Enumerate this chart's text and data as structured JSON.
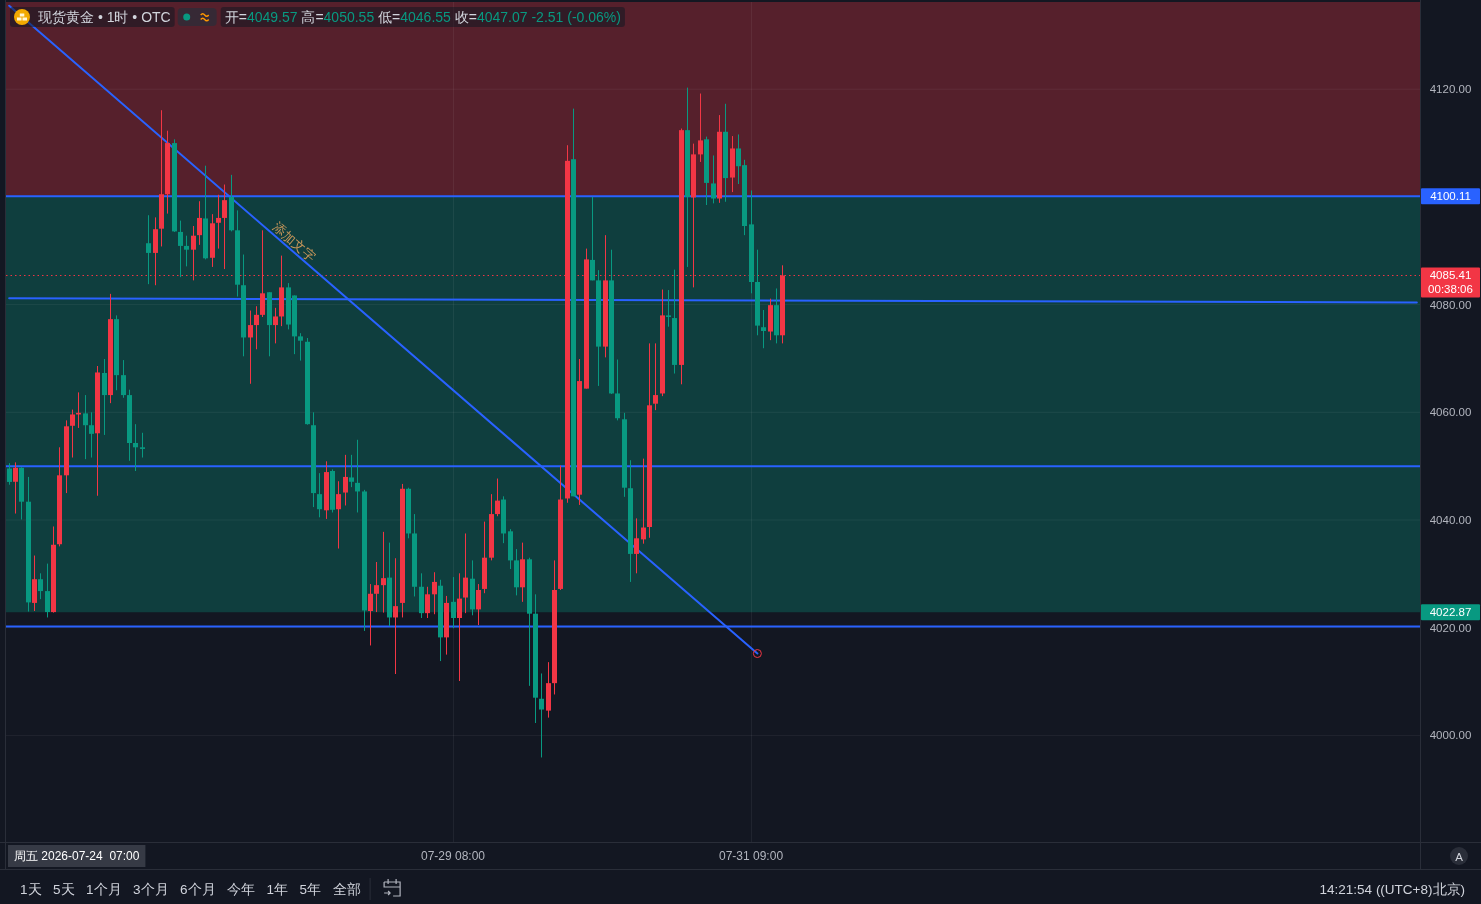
{
  "chart_data": {
    "type": "candlestick",
    "title": "现货黄金 • 1时 • OTC",
    "subtitle": "开=4049.57 高=4050.55 低=4046.55 收=4047.07 -2.51 (-0.06%)",
    "categories": [
      null,
      null,
      null,
      null,
      null,
      null,
      null,
      null,
      null,
      null,
      null,
      null,
      null,
      null,
      null,
      null,
      null,
      null,
      null,
      null,
      null,
      null,
      null,
      null,
      null,
      null,
      null,
      null,
      null,
      null,
      null,
      null,
      null,
      null,
      null,
      null,
      null,
      null,
      null,
      null,
      null,
      null,
      null,
      null,
      null,
      null,
      null,
      null,
      null,
      null,
      null,
      null,
      null,
      null,
      null,
      null,
      null,
      null,
      null,
      null,
      null,
      null,
      null,
      null,
      null,
      null,
      null,
      null,
      null,
      null,
      "07-29 08:00",
      null,
      null,
      null,
      null,
      null,
      null,
      null,
      null,
      null,
      null,
      null,
      null,
      null,
      null,
      null,
      null,
      null,
      null,
      null,
      null,
      null,
      null,
      null,
      null,
      null,
      null,
      null,
      null,
      null,
      null,
      null,
      null,
      null,
      null,
      null,
      null,
      null,
      null,
      null,
      null,
      null,
      null,
      null,
      null,
      null,
      null,
      "07-31 09:00",
      null,
      null,
      null,
      null,
      null,
      null,
      null,
      null,
      null,
      null,
      null,
      null,
      null,
      null,
      null,
      null,
      null,
      null,
      null,
      null,
      null,
      null,
      null,
      null,
      null,
      null,
      null,
      null,
      null,
      null,
      null,
      null,
      null,
      null,
      null,
      null,
      null,
      null,
      null,
      null,
      null,
      null,
      null,
      null,
      null,
      null,
      null,
      null,
      null,
      null,
      null,
      null,
      null,
      null,
      null,
      null,
      null,
      null,
      null,
      null,
      null,
      null,
      null,
      null,
      null,
      null,
      null,
      null,
      null,
      null,
      null,
      null,
      null,
      null,
      null,
      null,
      null,
      null,
      null,
      null,
      null,
      null,
      null,
      null,
      null,
      null,
      null,
      null,
      null,
      null,
      null,
      null,
      null,
      null,
      null,
      null,
      null,
      null,
      null,
      null,
      null,
      null,
      null,
      null,
      null
    ],
    "ohlc": [
      [
        4049.57,
        4050.55,
        4046.55,
        4047.07
      ],
      [
        4047.1,
        4050.7,
        4041.2,
        4049.7
      ],
      [
        4049.7,
        4049.8,
        4040.1,
        4043.4
      ],
      [
        4043.4,
        4048.0,
        4023.0,
        4024.7
      ],
      [
        4024.6,
        4033.4,
        4023.1,
        4029.0
      ],
      [
        4029.0,
        4030.1,
        4025.3,
        4026.8
      ],
      [
        4026.8,
        4031.9,
        4021.9,
        4022.9
      ],
      [
        4022.9,
        4038.8,
        4022.8,
        4035.4
      ],
      [
        4035.5,
        4053.5,
        4035.1,
        4048.3
      ],
      [
        4048.3,
        4058.5,
        4045.0,
        4057.4
      ],
      [
        4057.5,
        4060.5,
        4051.6,
        4059.6
      ],
      [
        4059.6,
        4063.7,
        4057.1,
        4059.9
      ],
      [
        4059.8,
        4063.2,
        4051.3,
        4057.6
      ],
      [
        4057.6,
        4060.0,
        4051.6,
        4056.0
      ],
      [
        4056.1,
        4068.6,
        4044.5,
        4067.4
      ],
      [
        4067.3,
        4069.9,
        4055.8,
        4063.2
      ],
      [
        4063.2,
        4082.0,
        4061.7,
        4077.3
      ],
      [
        4077.3,
        4078.0,
        4064.1,
        4066.9
      ],
      [
        4066.9,
        4069.7,
        4062.7,
        4063.2
      ],
      [
        4063.2,
        4064.2,
        4051.0,
        4054.3
      ],
      [
        4054.3,
        4057.8,
        4049.1,
        4053.5
      ],
      [
        4053.5,
        4056.2,
        4051.6,
        4053.2
      ],
      [
        4091.4,
        4096.6,
        4083.8,
        4089.6
      ],
      [
        4089.6,
        4096.2,
        4083.6,
        4094.0
      ],
      [
        4094.1,
        4116.1,
        4090.8,
        4100.5
      ],
      [
        4100.5,
        4112.3,
        4096.9,
        4110.0
      ],
      [
        4110.0,
        4110.7,
        4093.5,
        4093.6
      ],
      [
        4093.5,
        4095.6,
        4085.1,
        4090.9
      ],
      [
        4090.9,
        4092.8,
        4087.1,
        4090.2
      ],
      [
        4090.2,
        4094.6,
        4084.5,
        4092.8
      ],
      [
        4092.9,
        4099.2,
        4091.1,
        4096.1
      ],
      [
        4096.0,
        4105.8,
        4088.4,
        4088.6
      ],
      [
        4088.7,
        4096.8,
        4087.0,
        4095.1
      ],
      [
        4095.2,
        4100.4,
        4090.4,
        4096.1
      ],
      [
        4096.1,
        4102.3,
        4086.6,
        4099.4
      ],
      [
        4100.0,
        4104.1,
        4093.6,
        4093.8
      ],
      [
        4093.8,
        4097.5,
        4081.5,
        4083.7
      ],
      [
        4083.6,
        4089.3,
        4070.4,
        4073.9
      ],
      [
        4073.9,
        4078.9,
        4065.3,
        4076.2
      ],
      [
        4076.2,
        4079.7,
        4071.7,
        4078.1
      ],
      [
        4078.1,
        4093.8,
        4077.7,
        4082.1
      ],
      [
        4082.3,
        4082.3,
        4070.4,
        4076.2
      ],
      [
        4076.2,
        4079.4,
        4072.8,
        4077.8
      ],
      [
        4077.8,
        4089.1,
        4076.0,
        4083.2
      ],
      [
        4083.2,
        4084.0,
        4075.4,
        4076.3
      ],
      [
        4081.7,
        4081.7,
        4070.8,
        4074.1
      ],
      [
        4074.1,
        4074.7,
        4069.6,
        4073.3
      ],
      [
        4073.1,
        4073.8,
        4057.7,
        4057.8
      ],
      [
        4057.6,
        4060.0,
        4042.4,
        4045.0
      ],
      [
        4044.8,
        4048.7,
        4040.5,
        4042.0
      ],
      [
        4041.8,
        4050.9,
        4040.2,
        4048.9
      ],
      [
        4049.1,
        4049.4,
        4041.4,
        4041.9
      ],
      [
        4042.0,
        4047.2,
        4034.7,
        4044.8
      ],
      [
        4045.1,
        4052.1,
        4042.7,
        4048.0
      ],
      [
        4047.9,
        4052.1,
        4046.1,
        4047.1
      ],
      [
        4046.9,
        4054.9,
        4041.4,
        4045.3
      ],
      [
        4045.3,
        4045.6,
        4019.4,
        4023.2
      ],
      [
        4023.1,
        4028.1,
        4016.7,
        4026.3
      ],
      [
        4026.3,
        4032.2,
        4022.9,
        4027.9
      ],
      [
        4027.9,
        4037.8,
        4022.8,
        4029.2
      ],
      [
        4029.3,
        4035.8,
        4020.3,
        4021.9
      ],
      [
        4021.9,
        4032.9,
        4011.4,
        4024.0
      ],
      [
        4024.6,
        4046.7,
        4021.9,
        4045.8
      ],
      [
        4045.8,
        4046.0,
        4036.6,
        4037.5
      ],
      [
        4037.5,
        4041.1,
        4025.8,
        4027.6
      ],
      [
        4027.6,
        4030.1,
        4021.8,
        4022.7
      ],
      [
        4022.7,
        4027.6,
        4021.8,
        4026.2
      ],
      [
        4026.2,
        4030.3,
        4022.5,
        4028.5
      ],
      [
        4027.8,
        4028.9,
        4013.8,
        4018.2
      ],
      [
        4018.2,
        4025.9,
        4015.0,
        4024.6
      ],
      [
        4024.8,
        4029.4,
        4019.9,
        4021.8
      ],
      [
        4021.8,
        4030.1,
        4010.1,
        4025.4
      ],
      [
        4025.6,
        4037.5,
        4022.7,
        4029.3
      ],
      [
        4029.1,
        4032.5,
        4022.3,
        4023.4
      ],
      [
        4023.4,
        4028.1,
        4020.5,
        4027.0
      ],
      [
        4027.2,
        4039.7,
        4026.4,
        4033.0
      ],
      [
        4033.0,
        4044.8,
        4032.5,
        4041.1
      ],
      [
        4041.1,
        4047.7,
        4040.7,
        4043.6
      ],
      [
        4043.8,
        4044.4,
        4035.7,
        4037.5
      ],
      [
        4037.9,
        4038.3,
        4030.9,
        4032.5
      ],
      [
        4032.5,
        4034.6,
        4026.0,
        4027.5
      ],
      [
        4027.5,
        4035.8,
        4024.8,
        4032.7
      ],
      [
        4032.7,
        4033.0,
        4009.2,
        4022.6
      ],
      [
        4022.6,
        4026.2,
        4002.3,
        4007.0
      ],
      [
        4006.8,
        4011.5,
        3995.9,
        4004.8
      ],
      [
        4004.6,
        4013.6,
        4003.3,
        4009.7
      ],
      [
        4009.7,
        4032.5,
        4007.6,
        4027.0
      ],
      [
        4027.2,
        4050.1,
        4027.0,
        4043.8
      ],
      [
        4044.0,
        4109.6,
        4043.2,
        4106.7
      ],
      [
        4107.0,
        4116.4,
        4044.4,
        4044.4
      ],
      [
        4044.7,
        4069.9,
        4042.8,
        4065.8
      ],
      [
        4064.4,
        4090.4,
        4064.4,
        4088.4
      ],
      [
        4088.3,
        4100.0,
        4084.5,
        4084.5
      ],
      [
        4084.5,
        4086.4,
        4064.9,
        4072.2
      ],
      [
        4072.2,
        4092.9,
        4070.2,
        4084.5
      ],
      [
        4084.5,
        4090.2,
        4063.4,
        4063.5
      ],
      [
        4063.5,
        4069.8,
        4058.5,
        4058.9
      ],
      [
        4058.7,
        4059.9,
        4044.3,
        4046.0
      ],
      [
        4045.9,
        4051.1,
        4028.5,
        4033.7
      ],
      [
        4033.7,
        4040.3,
        4030.1,
        4036.6
      ],
      [
        4036.4,
        4051.4,
        4035.6,
        4038.6
      ],
      [
        4038.7,
        4072.8,
        4036.7,
        4061.3
      ],
      [
        4061.6,
        4072.8,
        4060.4,
        4063.2
      ],
      [
        4063.5,
        4082.8,
        4063.0,
        4078.0
      ],
      [
        4078.0,
        4082.7,
        4075.9,
        4077.7
      ],
      [
        4077.5,
        4086.5,
        4067.2,
        4068.8
      ],
      [
        4068.8,
        4112.7,
        4065.2,
        4112.4
      ],
      [
        4112.4,
        4120.3,
        4087.0,
        4100.0
      ],
      [
        4099.9,
        4109.9,
        4083.2,
        4107.9
      ],
      [
        4107.9,
        4119.2,
        4106.5,
        4110.5
      ],
      [
        4110.7,
        4111.2,
        4098.5,
        4102.6
      ],
      [
        4102.5,
        4107.7,
        4098.8,
        4099.7
      ],
      [
        4099.7,
        4115.2,
        4098.9,
        4112.1
      ],
      [
        4112.1,
        4117.3,
        4099.1,
        4103.5
      ],
      [
        4103.6,
        4111.3,
        4100.9,
        4109.0
      ],
      [
        4109.0,
        4111.6,
        4102.4,
        4105.7
      ],
      [
        4105.9,
        4106.9,
        4092.9,
        4094.6
      ],
      [
        4094.9,
        4101.2,
        4082.1,
        4084.2
      ],
      [
        4084.2,
        4090.2,
        4074.3,
        4076.1
      ],
      [
        4075.8,
        4079.0,
        4071.9,
        4075.1
      ],
      [
        4075.0,
        4081.1,
        4073.4,
        4079.9
      ],
      [
        4079.9,
        4083.0,
        4072.8,
        4074.3
      ],
      [
        4074.3,
        4087.3,
        4072.8,
        4085.41
      ],
      null,
      null,
      null,
      null,
      null,
      null,
      null,
      null,
      null,
      null,
      null,
      null,
      null,
      null,
      null,
      null,
      null,
      null,
      null,
      null,
      null,
      null,
      null,
      null,
      null,
      null,
      null,
      null,
      null,
      null,
      null,
      null,
      null,
      null,
      null,
      null,
      null,
      null,
      null,
      null,
      null,
      null,
      null,
      null,
      null,
      null,
      null,
      null,
      null,
      null,
      null,
      null,
      null,
      null,
      null,
      null,
      null,
      null,
      null,
      null,
      null,
      null,
      null,
      null,
      null,
      null,
      null,
      null,
      null,
      null,
      null,
      null,
      null,
      null,
      null,
      null,
      null,
      null,
      null,
      null,
      null,
      null,
      null,
      null,
      null,
      null,
      null,
      null,
      null,
      null,
      null,
      null,
      null,
      null,
      null,
      null,
      null,
      null,
      null,
      null
    ],
    "colors": [
      "#089981",
      "#f23645",
      "#089981",
      "#089981",
      "#f23645",
      "#089981",
      "#089981",
      "#f23645",
      "#f23645",
      "#f23645",
      "#f23645",
      "#f23645",
      "#089981",
      "#089981",
      "#f23645",
      "#089981",
      "#f23645",
      "#089981",
      "#089981",
      "#089981",
      "#089981",
      "#089981",
      "#089981",
      "#f23645",
      "#f23645",
      "#f23645",
      "#089981",
      "#089981",
      "#089981",
      "#f23645",
      "#f23645",
      "#089981",
      "#f23645",
      "#f23645",
      "#f23645",
      "#089981",
      "#089981",
      "#089981",
      "#f23645",
      "#f23645",
      "#f23645",
      "#089981",
      "#f23645",
      "#f23645",
      "#089981",
      "#089981",
      "#089981",
      "#089981",
      "#089981",
      "#089981",
      "#f23645",
      "#089981",
      "#f23645",
      "#f23645",
      "#089981",
      "#089981",
      "#089981",
      "#f23645",
      "#f23645",
      "#f23645",
      "#089981",
      "#f23645",
      "#f23645",
      "#089981",
      "#089981",
      "#089981",
      "#f23645",
      "#f23645",
      "#089981",
      "#f23645",
      "#089981",
      "#f23645",
      "#f23645",
      "#089981",
      "#f23645",
      "#f23645",
      "#f23645",
      "#f23645",
      "#089981",
      "#089981",
      "#089981",
      "#f23645",
      "#089981",
      "#089981",
      "#089981",
      "#f23645",
      "#f23645",
      "#f23645",
      "#f23645",
      "#089981",
      "#f23645",
      "#f23645",
      "#089981",
      "#089981",
      "#f23645",
      "#089981",
      "#089981",
      "#089981",
      "#089981",
      "#f23645",
      "#f23645",
      "#f23645",
      "#f23645",
      "#f23645",
      "#089981",
      "#089981",
      "#f23645",
      "#089981",
      "#f23645",
      "#f23645",
      "#089981",
      "#089981",
      "#f23645",
      "#089981",
      "#f23645",
      "#089981",
      "#089981",
      "#089981",
      "#089981",
      "#089981",
      "#f23645",
      "#089981",
      "#f23645",
      null,
      null,
      null,
      null,
      null,
      null,
      null,
      null,
      null,
      null,
      null,
      null,
      null,
      null,
      null,
      null,
      null,
      null,
      null,
      null,
      null,
      null,
      null,
      null,
      null,
      null,
      null,
      null,
      null,
      null,
      null,
      null,
      null,
      null,
      null,
      null,
      null,
      null,
      null,
      null,
      null,
      null,
      null,
      null,
      null,
      null,
      null,
      null,
      null,
      null,
      null,
      null,
      null,
      null,
      null,
      null,
      null,
      null,
      null,
      null,
      null,
      null,
      null,
      null,
      null,
      null,
      null,
      null,
      null,
      null,
      null,
      null,
      null,
      null,
      null,
      null,
      null,
      null,
      null,
      null,
      null,
      null,
      null,
      null,
      null,
      null,
      null,
      null,
      null,
      null,
      null,
      null,
      null,
      null,
      null,
      null,
      null,
      null,
      null,
      null
    ],
    "series": [
      {
        "type": "line",
        "name": "添加文字",
        "color": "#2962ff",
        "values": [
          4135.5,
          null,
          null,
          null,
          null,
          null,
          null,
          null,
          null,
          null,
          null,
          null,
          null,
          null,
          null,
          null,
          null,
          null,
          null,
          null,
          null,
          null,
          null,
          null,
          null,
          null,
          null,
          null,
          null,
          null,
          null,
          null,
          null,
          null,
          null,
          null,
          null,
          null,
          null,
          null,
          null,
          null,
          null,
          null,
          null,
          null,
          null,
          null,
          null,
          null,
          null,
          null,
          null,
          null,
          null,
          null,
          null,
          null,
          null,
          null,
          null,
          null,
          null,
          null,
          null,
          null,
          null,
          null,
          null,
          null,
          null,
          null,
          null,
          null,
          null,
          null,
          null,
          null,
          null,
          null,
          null,
          null,
          null,
          null,
          null,
          null,
          null,
          null,
          null,
          null,
          null,
          null,
          null,
          null,
          null,
          null,
          null,
          null,
          null,
          null,
          null,
          null,
          null,
          null,
          null,
          null,
          null,
          null,
          null,
          null,
          null,
          null,
          null,
          null,
          null,
          null,
          null,
          null,
          4015.2,
          null,
          null,
          null,
          null,
          null,
          null,
          null,
          null,
          null,
          null,
          null,
          null,
          null,
          null,
          null,
          null,
          null,
          null,
          null,
          null,
          null,
          null,
          null,
          null,
          null,
          null,
          null,
          null,
          null,
          null,
          null,
          null,
          null,
          null,
          null,
          null,
          null,
          null,
          null,
          null,
          null,
          null,
          null,
          null,
          null,
          null,
          null,
          null,
          null,
          null,
          null,
          null,
          null,
          null,
          null,
          null,
          null,
          null,
          null,
          null,
          null,
          null,
          null,
          null,
          null,
          null,
          null,
          null,
          null,
          null,
          null,
          null,
          null,
          null,
          null,
          null,
          null,
          null,
          null,
          null,
          null,
          null,
          null,
          null,
          null,
          null,
          null,
          null,
          null,
          null,
          null,
          null,
          null,
          null,
          null,
          null,
          null,
          null,
          null,
          null,
          null,
          null,
          null,
          null
        ]
      },
      {
        "type": "line",
        "color": "#2962ff",
        "values": [
          4081.2,
          null,
          null,
          null,
          null,
          null,
          null,
          null,
          null,
          null,
          null,
          null,
          null,
          null,
          null,
          null,
          null,
          null,
          null,
          null,
          null,
          null,
          null,
          null,
          null,
          null,
          null,
          null,
          null,
          null,
          null,
          null,
          null,
          null,
          null,
          null,
          null,
          null,
          null,
          null,
          null,
          null,
          null,
          null,
          null,
          null,
          null,
          null,
          null,
          null,
          null,
          null,
          null,
          null,
          null,
          null,
          null,
          null,
          null,
          null,
          null,
          null,
          null,
          null,
          null,
          null,
          null,
          null,
          null,
          null,
          null,
          null,
          null,
          null,
          null,
          null,
          null,
          null,
          null,
          null,
          null,
          null,
          null,
          null,
          null,
          null,
          null,
          null,
          null,
          null,
          null,
          null,
          null,
          null,
          null,
          null,
          null,
          null,
          null,
          null,
          null,
          null,
          null,
          null,
          null,
          null,
          null,
          null,
          null,
          null,
          null,
          null,
          null,
          null,
          null,
          null,
          null,
          null,
          null,
          null,
          null,
          null,
          null,
          null,
          null,
          null,
          null,
          null,
          null,
          null,
          null,
          null,
          null,
          null,
          null,
          null,
          null,
          null,
          null,
          null,
          null,
          null,
          null,
          null,
          null,
          null,
          null,
          null,
          null,
          null,
          null,
          null,
          null,
          null,
          null,
          null,
          null,
          null,
          null,
          null,
          null,
          null,
          null,
          null,
          null,
          null,
          null,
          null,
          null,
          null,
          null,
          null,
          null,
          null,
          null,
          null,
          null,
          null,
          null,
          null,
          null,
          null,
          null,
          null,
          null,
          null,
          null,
          null,
          null,
          null,
          null,
          null,
          null,
          null,
          null,
          null,
          null,
          null,
          null,
          null,
          null,
          null,
          null,
          null,
          null,
          null,
          null,
          null,
          null,
          null,
          null,
          null,
          null,
          null,
          null,
          null,
          null,
          null,
          null,
          null,
          null,
          null,
          4080.4
        ]
      }
    ],
    "ref_lines": [
      {
        "axis": "y",
        "value": 4100.11,
        "label": "4100.11",
        "color": "#2962ff"
      },
      {
        "axis": "y",
        "value": 4050,
        "color": "#2962ff"
      },
      {
        "axis": "y",
        "value": 4020.2,
        "color": "#2962ff"
      },
      {
        "axis": "y",
        "value": 4085.41,
        "label": "4085.41\n00:38:06",
        "color": "#f23645",
        "line_style": "dotted"
      }
    ],
    "bands": [
      {
        "axis": "y",
        "from": 4100.11,
        "to": 4136.2,
        "color": "#f23645"
      },
      {
        "axis": "y",
        "from": 4022.87,
        "to": 4100.11,
        "color": "#089981",
        "label": "4022.87"
      }
    ],
    "ylim": [
      3980.2,
      4136.2
    ],
    "yticks": [
      {
        "value": 4000,
        "label": "4000.00"
      },
      {
        "value": 4020,
        "label": "4020.00"
      },
      {
        "value": 4040,
        "label": "4040.00"
      },
      {
        "value": 4060,
        "label": "4060.00"
      },
      {
        "value": 4080,
        "label": "4080.00"
      },
      {
        "value": 4120,
        "label": "4120.00"
      }
    ],
    "grid": true,
    "annotations": [
      "周五 2026-07-24  07:00",
      "1天",
      "5天",
      "1个月",
      "3个月",
      "6个月",
      "今年",
      "1年",
      "5年",
      "全部",
      "14:21:54 ((UTC+8)北京)",
      "A"
    ]
  }
}
